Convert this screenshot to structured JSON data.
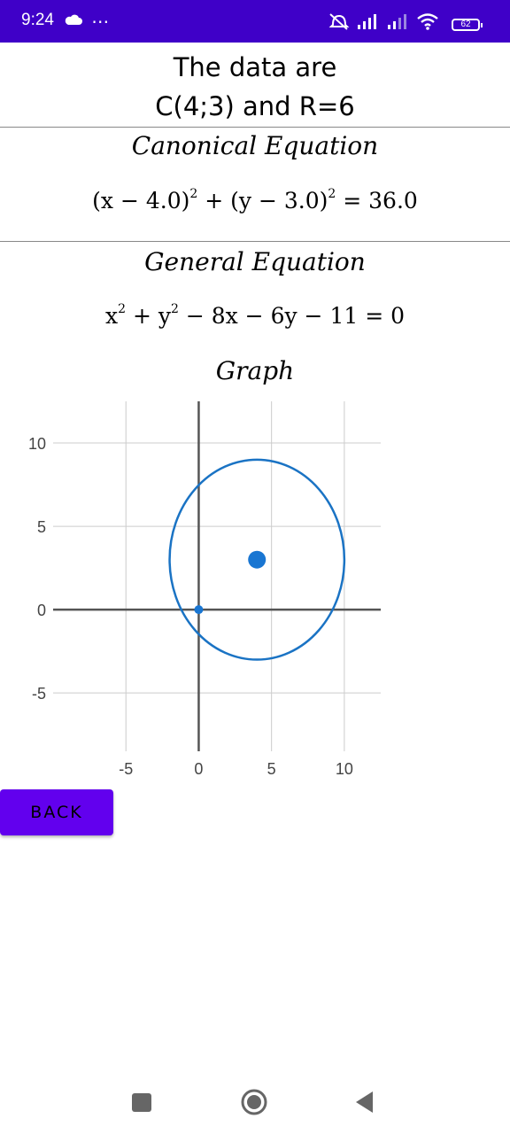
{
  "status_bar": {
    "time": "9:24",
    "more_icon": "⋯",
    "battery_level": "62",
    "icons": [
      "cloud-icon",
      "more-dots-icon",
      "alarm-off-icon",
      "signal-icon",
      "signal-weak-icon",
      "wifi-icon",
      "battery-icon"
    ]
  },
  "header": {
    "line1": "The data are",
    "line2": "C(4;3) and R=6"
  },
  "canonical": {
    "title": "Canonical Equation",
    "lhs1": "(x − 4.0)",
    "exp1": "2",
    "mid": " + (y − 3.0)",
    "exp2": "2",
    "rhs": " = 36.0"
  },
  "general": {
    "title": "General Equation",
    "p1": "x",
    "e1": "2",
    "p2": " + y",
    "e2": "2",
    "p3": " − 8x − 6y − 11 = 0"
  },
  "graph_section": {
    "title": "Graph"
  },
  "chart_data": {
    "type": "scatter",
    "title": "",
    "xlabel": "",
    "ylabel": "",
    "xlim": [
      -10,
      12.5
    ],
    "ylim": [
      -8.5,
      12.5
    ],
    "x_ticks": [
      -5,
      0,
      5,
      10
    ],
    "y_ticks": [
      10,
      5,
      0,
      -5
    ],
    "x_tick_labels": [
      "-5",
      "0",
      "5",
      "10"
    ],
    "y_tick_labels": [
      "10",
      "5",
      "0",
      "-5"
    ],
    "grid": true,
    "circle": {
      "center": [
        4,
        3
      ],
      "radius": 6,
      "color": "#1a73c4"
    },
    "points": [
      {
        "x": 4,
        "y": 3,
        "label": "center",
        "size": "large"
      },
      {
        "x": 0,
        "y": 0,
        "label": "origin",
        "size": "small"
      }
    ],
    "colors": {
      "curve": "#1a73c4",
      "points": "#1976d2",
      "axes": "#555555",
      "grid": "#cccccc"
    }
  },
  "actions": {
    "back_label": "BACK"
  },
  "colors": {
    "status_bar": "#3f00c8",
    "button": "#6200ee"
  },
  "nav": {
    "icons": [
      "recents-square-icon",
      "home-circle-icon",
      "back-triangle-icon"
    ]
  }
}
